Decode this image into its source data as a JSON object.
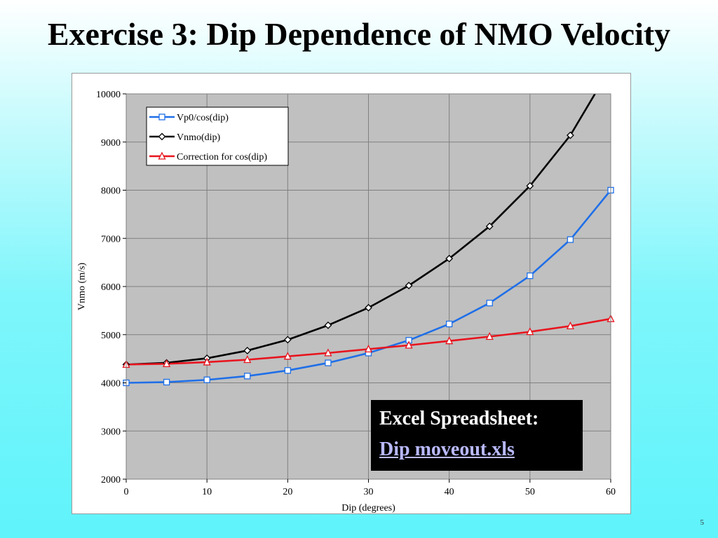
{
  "slide": {
    "title": "Exercise 3: Dip Dependence of NMO Velocity",
    "page_number": "5"
  },
  "excel_box": {
    "heading": "Excel Spreadsheet:",
    "link_text": "Dip moveout.xls"
  },
  "chart_data": {
    "type": "line",
    "title": "",
    "xlabel": "Dip (degrees)",
    "ylabel": "Vnmo (m/s)",
    "xlim": [
      0,
      60
    ],
    "ylim": [
      2000,
      10000
    ],
    "xticks": [
      0,
      10,
      20,
      30,
      40,
      50,
      60
    ],
    "yticks": [
      2000,
      3000,
      4000,
      5000,
      6000,
      7000,
      8000,
      9000,
      10000
    ],
    "grid": true,
    "plot_background": "#c0c0c0",
    "legend_position": "top-left",
    "x": [
      0,
      5,
      10,
      15,
      20,
      25,
      30,
      35,
      40,
      45,
      50,
      55,
      60
    ],
    "series": [
      {
        "name": "Vp0/cos(dip)",
        "color": "#1f6fe8",
        "marker": "square",
        "values": [
          4000,
          4015,
          4062,
          4141,
          4257,
          4414,
          4619,
          4883,
          5222,
          5657,
          6223,
          6974,
          8000
        ]
      },
      {
        "name": "Vnmo(dip)",
        "color": "#000000",
        "marker": "diamond",
        "values": [
          4380,
          4415,
          4510,
          4670,
          4895,
          5195,
          5560,
          6020,
          6580,
          7250,
          8090,
          9140,
          10550
        ]
      },
      {
        "name": "Correction for cos(dip)",
        "color": "#e8141e",
        "marker": "triangle",
        "values": [
          4380,
          4395,
          4430,
          4480,
          4550,
          4620,
          4700,
          4780,
          4870,
          4960,
          5060,
          5180,
          5330
        ]
      }
    ]
  }
}
